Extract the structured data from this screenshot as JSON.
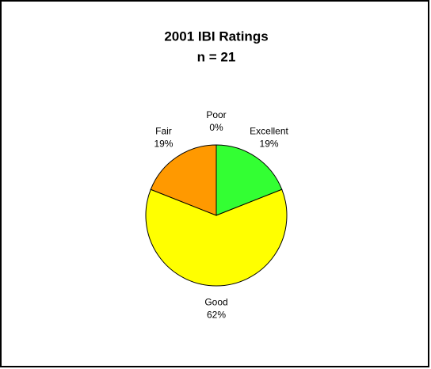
{
  "chart_data": {
    "type": "pie",
    "title": "2001 IBI Ratings",
    "subtitle": "n = 21",
    "categories": [
      "Excellent",
      "Good",
      "Fair",
      "Poor"
    ],
    "values": [
      19,
      62,
      19,
      0
    ],
    "value_labels": [
      "19%",
      "62%",
      "19%",
      "0%"
    ],
    "colors": [
      "#33ff33",
      "#ffff00",
      "#ff9900",
      "#ff0000"
    ]
  }
}
